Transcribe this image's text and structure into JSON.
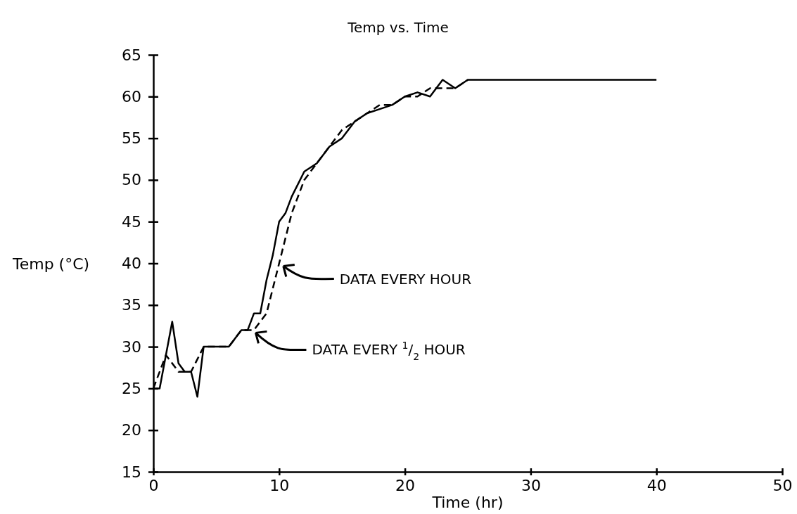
{
  "chart_data": {
    "type": "line",
    "title": "Temp vs. Time",
    "xlabel": "Time (hr)",
    "ylabel": "Temp (°C)",
    "xlim": [
      0,
      50
    ],
    "xticks": [
      0,
      10,
      20,
      30,
      40,
      50
    ],
    "ylim": [
      15,
      65
    ],
    "yticks": [
      15,
      20,
      25,
      30,
      35,
      40,
      45,
      50,
      55,
      60,
      65
    ],
    "series": [
      {
        "color": "#000000",
        "line_style": "solid",
        "x": [
          0,
          0.5,
          1,
          1.5,
          2,
          2.5,
          3,
          3.5,
          4,
          5,
          6,
          6.5,
          7,
          7.5,
          8,
          8.5,
          9,
          9.5,
          10,
          10.5,
          11,
          12,
          13,
          14,
          15,
          16,
          17,
          18,
          19,
          20,
          21,
          22,
          23,
          24,
          25,
          30,
          40
        ],
        "values": [
          25,
          25,
          29,
          33,
          28,
          27,
          27,
          24,
          30,
          30,
          30,
          31,
          32,
          32,
          34,
          34,
          38,
          41,
          45,
          46,
          48,
          51,
          52,
          54,
          55,
          57,
          58,
          58.5,
          59,
          60,
          60.5,
          60,
          62,
          61,
          62,
          62,
          62
        ]
      },
      {
        "color": "#000000",
        "line_style": "dashed",
        "x": [
          0,
          1,
          2,
          3,
          4,
          5,
          6,
          7,
          8,
          9,
          10,
          11,
          12,
          13,
          14,
          15,
          16,
          17,
          18,
          19,
          20,
          21,
          22,
          23,
          24,
          25
        ],
        "values": [
          25,
          29,
          27,
          27,
          30,
          30,
          30,
          32,
          32,
          34,
          40,
          46,
          50,
          52,
          54,
          56,
          57,
          58,
          59,
          59,
          60,
          60,
          61,
          61,
          61,
          62
        ]
      }
    ],
    "annotations": [
      {
        "text": "DATA EVERY HOUR",
        "x": 10,
        "y": 40
      },
      {
        "text": "DATA EVERY $^{1}$/$_{2}$ HOUR",
        "x": 7.8,
        "y": 32
      }
    ]
  }
}
